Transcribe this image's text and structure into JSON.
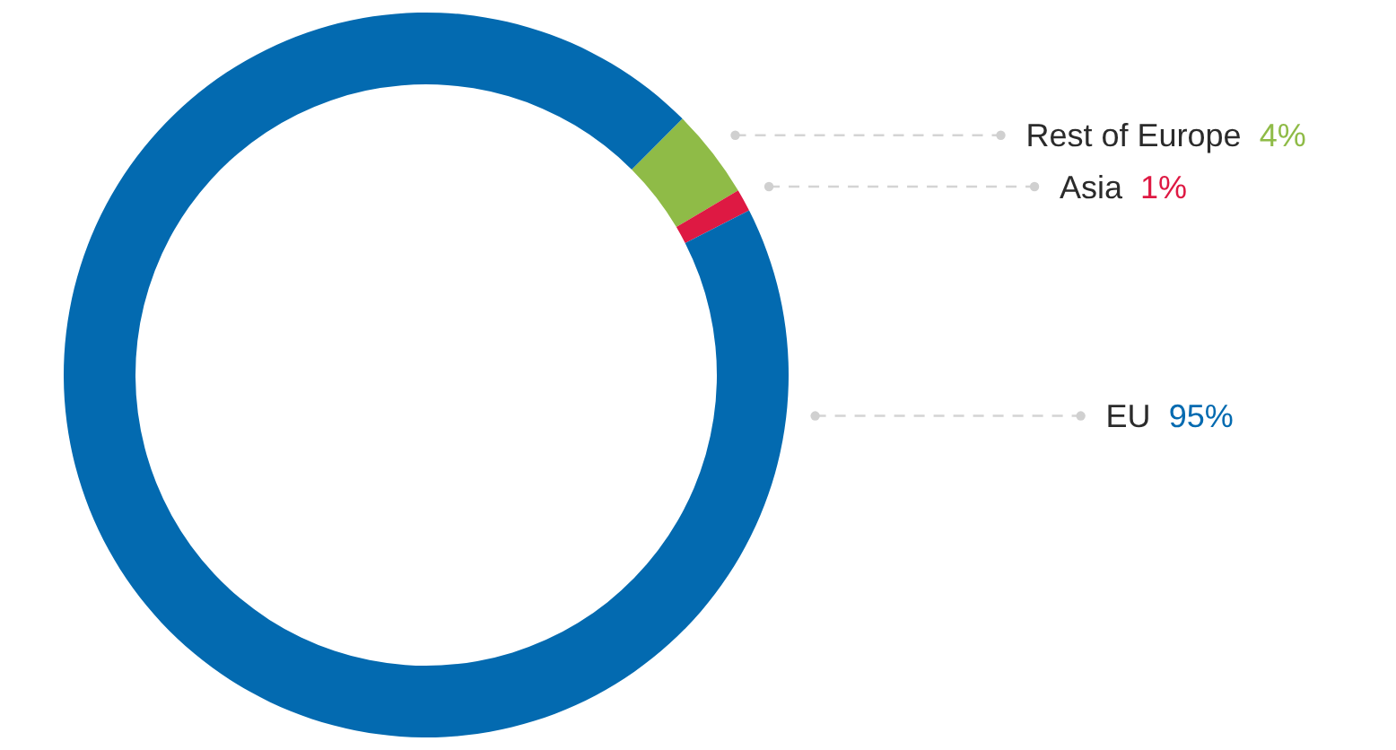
{
  "chart_data": {
    "type": "donut",
    "categories": [
      "Rest of Europe",
      "Asia",
      "EU"
    ],
    "values": [
      4,
      1,
      95
    ],
    "colors": [
      "#8fbb47",
      "#de1943",
      "#036ab0"
    ],
    "value_labels": [
      "4%",
      "1%",
      "95%"
    ]
  }
}
